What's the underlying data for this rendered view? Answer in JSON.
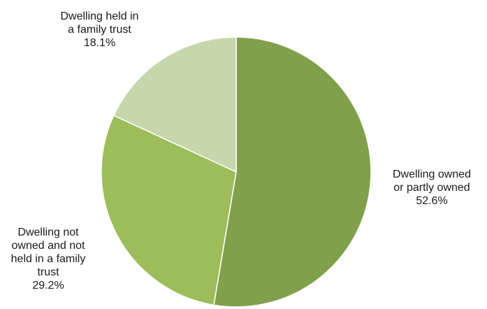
{
  "chart_data": {
    "type": "pie",
    "title": "",
    "legend": "none",
    "slices": [
      {
        "label_lines": [
          "Dwelling owned",
          "or partly owned"
        ],
        "value": 52.6,
        "value_label": "52.6%",
        "color": "#80a04b"
      },
      {
        "label_lines": [
          "Dwelling not",
          "owned and not",
          "held in a family",
          "trust"
        ],
        "value": 29.2,
        "value_label": "29.2%",
        "color": "#9cbd5a"
      },
      {
        "label_lines": [
          "Dwelling held in",
          "a family trust"
        ],
        "value": 18.1,
        "value_label": "18.1%",
        "color": "#c7d7ac"
      }
    ]
  }
}
